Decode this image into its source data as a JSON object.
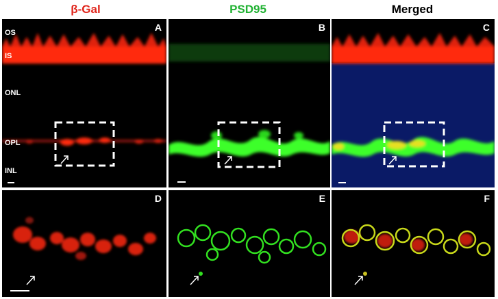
{
  "headers": {
    "beta_gal": "β-Gal",
    "psd95": "PSD95",
    "merged": "Merged"
  },
  "header_colors": {
    "beta_gal": "#e0251b",
    "psd95": "#21b233",
    "merged": "#000000"
  },
  "panels": {
    "A": "A",
    "B": "B",
    "C": "C",
    "D": "D",
    "E": "E",
    "F": "F"
  },
  "layers": [
    "OS",
    "IS",
    "ONL",
    "OPL",
    "INL"
  ],
  "channel_colors": {
    "red": "#ff2a10",
    "green": "#3cff2a",
    "blue": "#0a1a66",
    "merged_overlap": "#e6e020"
  }
}
